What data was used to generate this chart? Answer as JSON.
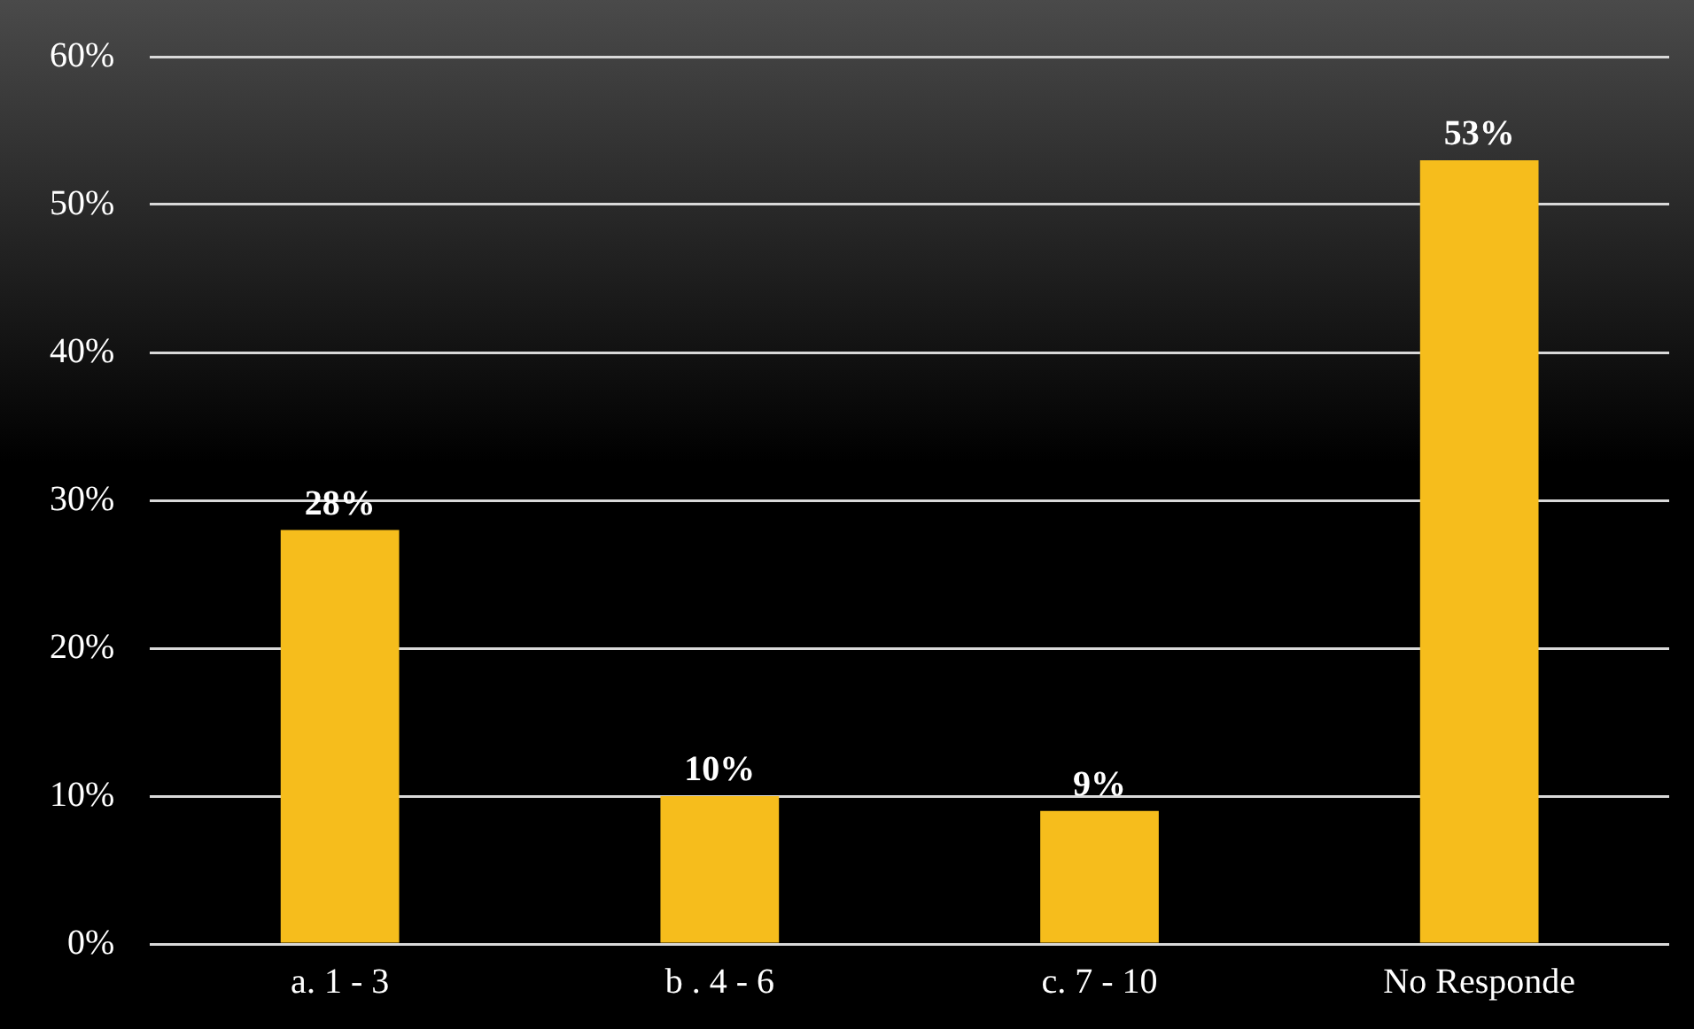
{
  "chart_data": {
    "type": "bar",
    "categories": [
      "a. 1 - 3",
      "b . 4 - 6",
      "c. 7 - 10",
      "No Responde"
    ],
    "values": [
      28,
      10,
      9,
      53
    ],
    "color": "#f6bd1c",
    "value_labels": [
      "28%",
      "10%",
      "9%",
      "53%"
    ],
    "ylim": [
      0,
      60
    ],
    "yticks": [
      {
        "value": 0,
        "label": "0%"
      },
      {
        "value": 10,
        "label": "10%"
      },
      {
        "value": 20,
        "label": "20%"
      },
      {
        "value": 30,
        "label": "30%"
      },
      {
        "value": 40,
        "label": "40%"
      },
      {
        "value": 50,
        "label": "50%"
      },
      {
        "value": 60,
        "label": "60%"
      }
    ],
    "grid": "y",
    "legend": false
  }
}
